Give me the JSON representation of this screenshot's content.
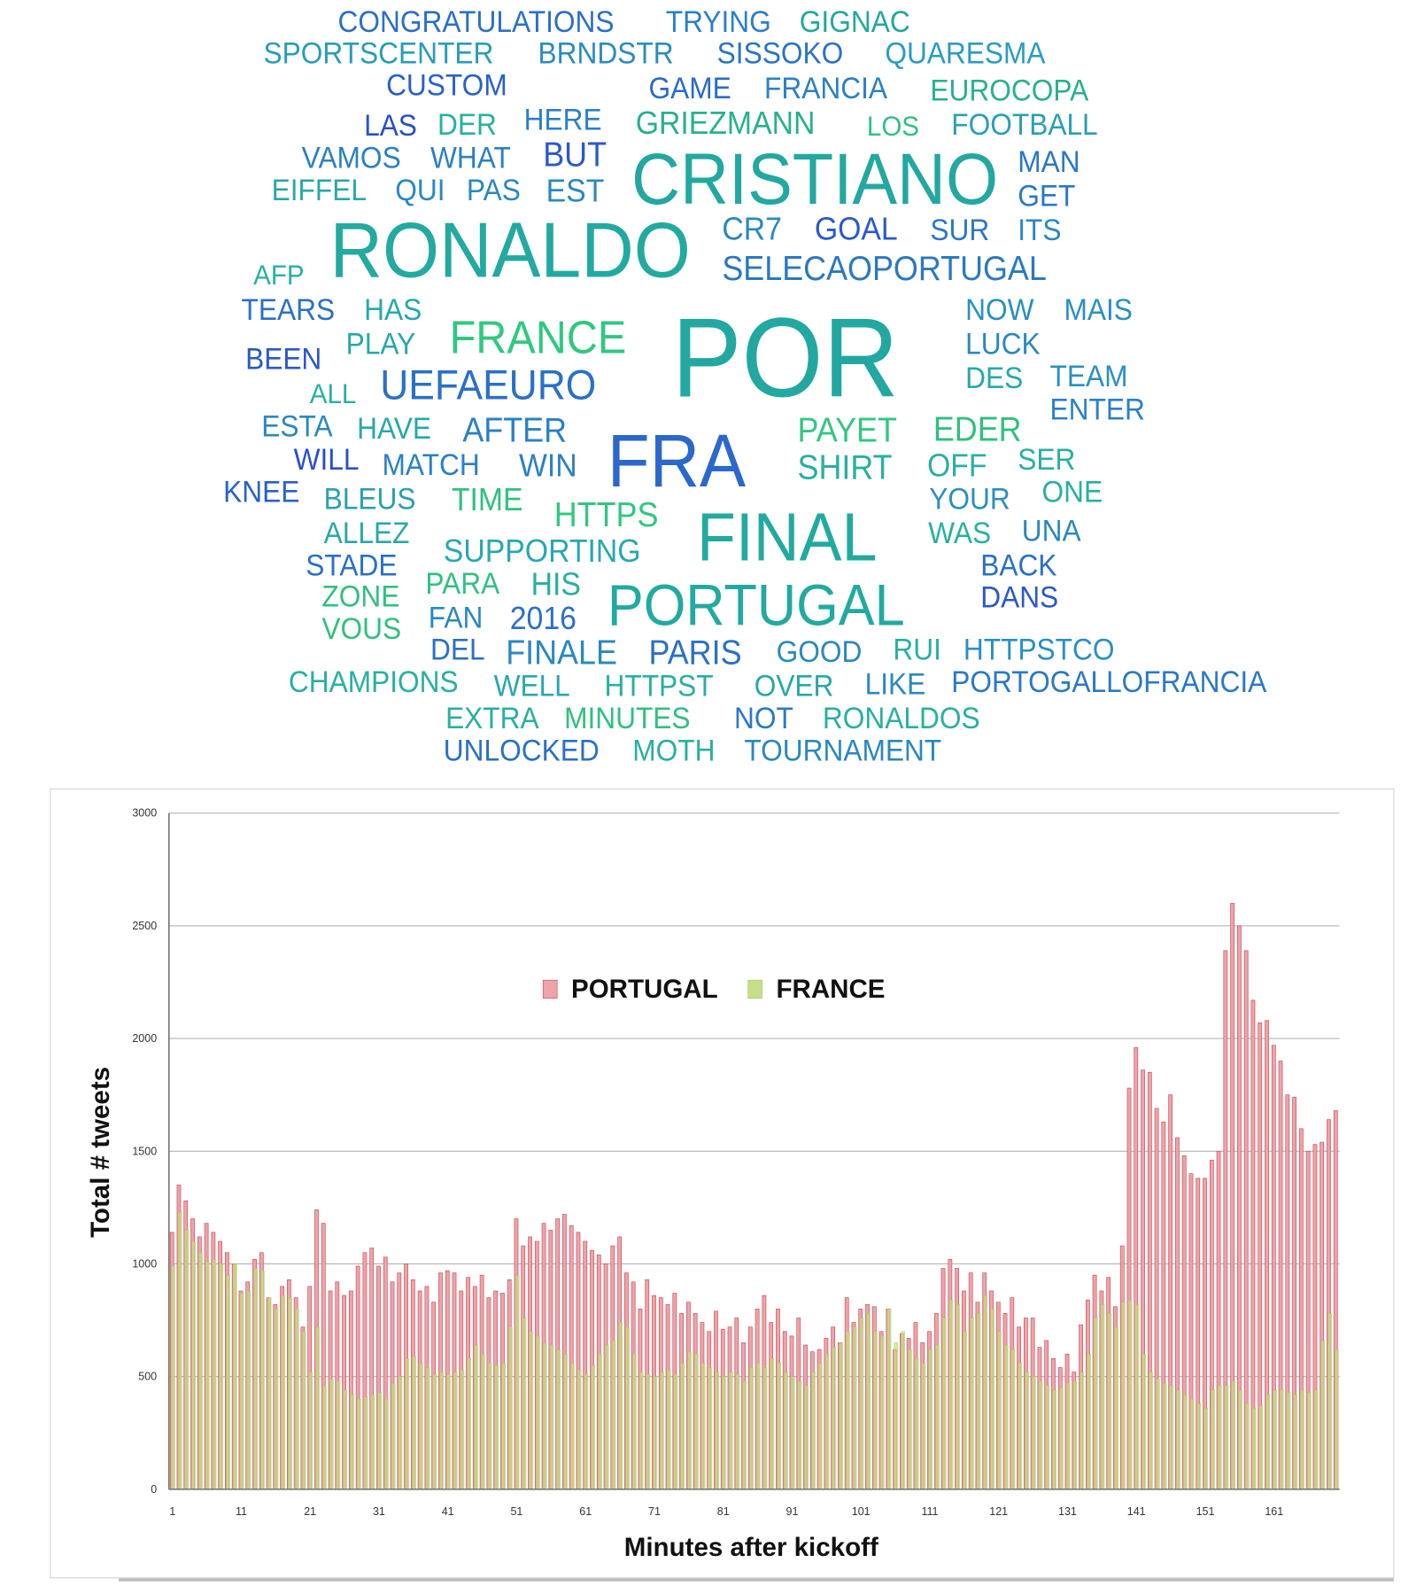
{
  "chart_data": [
    {
      "type": "wordcloud",
      "words": [
        "CONGRATULATIONS",
        "TRYING",
        "GIGNAC",
        "SPORTSCENTER",
        "BRNDSTR",
        "SISSOKO",
        "QUARESMA",
        "CUSTOM",
        "GAME",
        "FRANCIA",
        "EUROCOPA",
        "LAS",
        "DER",
        "HERE",
        "GRIEZMANN",
        "LOS",
        "FOOTBALL",
        "VAMOS",
        "WHAT",
        "BUT",
        "CRISTIANO",
        "MAN",
        "EIFFEL",
        "QUI",
        "PAS",
        "EST",
        "GET",
        "RONALDO",
        "CR7",
        "GOAL",
        "SUR",
        "ITS",
        "AFP",
        "SELECAOPORTUGAL",
        "TEARS",
        "HAS",
        "NOW",
        "MAIS",
        "FRANCE",
        "POR",
        "PLAY",
        "LUCK",
        "BEEN",
        "DES",
        "TEAM",
        "ALL",
        "UEFAEURO",
        "ENTER",
        "ESTA",
        "HAVE",
        "AFTER",
        "PAYET",
        "EDER",
        "FRA",
        "WILL",
        "MATCH",
        "WIN",
        "SHIRT",
        "OFF",
        "SER",
        "KNEE",
        "BLEUS",
        "TIME",
        "YOUR",
        "ONE",
        "HTTPS",
        "FINAL",
        "ALLEZ",
        "WAS",
        "UNA",
        "SUPPORTING",
        "STADE",
        "BACK",
        "PARA",
        "HIS",
        "PORTUGAL",
        "ZONE",
        "DANS",
        "FAN",
        "2016",
        "VOUS",
        "DEL",
        "FINALE",
        "PARIS",
        "GOOD",
        "RUI",
        "HTTPSTCO",
        "CHAMPIONS",
        "WELL",
        "HTTPST",
        "OVER",
        "LIKE",
        "PORTOGALLOFRANCIA",
        "EXTRA",
        "MINUTES",
        "NOT",
        "RONALDOS",
        "UNLOCKED",
        "MOTH",
        "TOURNAMENT"
      ],
      "colors": [
        "#2a6fc9",
        "#2a7fc9",
        "#22a89a",
        "#2a9cb8",
        "#2a8cc0",
        "#2a74c8",
        "#2a9cc0",
        "#2a5fcc",
        "#2a6acc",
        "#2a80c4",
        "#28b090",
        "#2a50c8",
        "#28b0a0",
        "#2a80c8",
        "#28b090",
        "#30c080",
        "#28a0b0",
        "#2a80c4",
        "#2a80c4",
        "#2a58cc",
        "#22a8a0",
        "#2a78c8",
        "#28a8a8",
        "#2a88c0",
        "#2a88c0",
        "#2a88c0",
        "#2a78c8",
        "#22aaa0",
        "#2a88c0",
        "#2a58cc",
        "#2a78c8",
        "#2a88c0",
        "#28b0a0",
        "#2a78c4",
        "#2a70c8",
        "#28a8a8",
        "#2a90c0",
        "#2a90c0",
        "#30c880",
        "#22a8a0",
        "#28a8a8",
        "#2a88c0",
        "#2a58cc",
        "#28a8a8",
        "#2a90c0",
        "#28b0a0",
        "#2a70c8",
        "#2a80c8",
        "#2a88c0",
        "#28a8a8",
        "#2a80c8",
        "#30c880",
        "#30c080",
        "#2a68cc",
        "#2a50c8",
        "#2a80c8",
        "#2a80c8",
        "#28b0a0",
        "#28b0a0",
        "#28b0a0",
        "#2a60cc",
        "#2aa0b0",
        "#30c080",
        "#2a90c0",
        "#28b0a0",
        "#30c880",
        "#22aaa0",
        "#28a8a8",
        "#28b0a0",
        "#2a88c0",
        "#28a8b0",
        "#2a70c8",
        "#2a70c8",
        "#30c080",
        "#28b0a0",
        "#22aaa0",
        "#30c080",
        "#2a58cc",
        "#2a88c0",
        "#2a70c8",
        "#30c080",
        "#2a70c8",
        "#2a88c0",
        "#2a70c8",
        "#2a88c0",
        "#28b0a0",
        "#2a90c0",
        "#28b0a0",
        "#28a8b0",
        "#28b0a0",
        "#28a8a8",
        "#2a88c0",
        "#2a78c8",
        "#28b0a0",
        "#30c080",
        "#2a78c8",
        "#28b0a0",
        "#2a70c8",
        "#28b0a0",
        "#2a88c0"
      ]
    },
    {
      "type": "bar",
      "xlabel": "Minutes  after kickoff",
      "ylabel": "Total  #  tweets",
      "categories": [
        1,
        null,
        null,
        null,
        null,
        null,
        null,
        null,
        null,
        null,
        11,
        null,
        null,
        null,
        null,
        null,
        null,
        null,
        null,
        null,
        21,
        null,
        null,
        null,
        null,
        null,
        null,
        null,
        null,
        null,
        31,
        null,
        null,
        null,
        null,
        null,
        null,
        null,
        null,
        null,
        41,
        null,
        null,
        null,
        null,
        null,
        null,
        null,
        null,
        null,
        51,
        null,
        null,
        null,
        null,
        null,
        null,
        null,
        null,
        null,
        61,
        null,
        null,
        null,
        null,
        null,
        null,
        null,
        null,
        null,
        71,
        null,
        null,
        null,
        null,
        null,
        null,
        null,
        null,
        null,
        81,
        null,
        null,
        null,
        null,
        null,
        null,
        null,
        null,
        null,
        91,
        null,
        null,
        null,
        null,
        null,
        null,
        null,
        null,
        null,
        101,
        null,
        null,
        null,
        null,
        null,
        null,
        null,
        null,
        null,
        111,
        null,
        null,
        null,
        null,
        null,
        null,
        null,
        null,
        null,
        121,
        null,
        null,
        null,
        null,
        null,
        null,
        null,
        null,
        null,
        131,
        null,
        null,
        null,
        null,
        null,
        null,
        null,
        null,
        null,
        141,
        null,
        null,
        null,
        null,
        null,
        null,
        null,
        null,
        null,
        151,
        null,
        null,
        null,
        null,
        null,
        null,
        null,
        null,
        null,
        161,
        null,
        null,
        null,
        null,
        null,
        null,
        null,
        null,
        null
      ],
      "series": [
        {
          "name": "PORTUGAL",
          "color": "#eba4aa",
          "edge": "#d0505a",
          "values": [
            1140,
            1350,
            1280,
            1200,
            1120,
            1180,
            1140,
            1100,
            1050,
            1000,
            880,
            920,
            1020,
            1050,
            850,
            820,
            900,
            930,
            850,
            720,
            900,
            1240,
            1180,
            880,
            920,
            860,
            880,
            990,
            1050,
            1070,
            990,
            1030,
            920,
            960,
            1000,
            930,
            880,
            900,
            830,
            960,
            970,
            960,
            880,
            940,
            900,
            950,
            850,
            880,
            870,
            930,
            1200,
            1080,
            1120,
            1100,
            1180,
            1150,
            1200,
            1220,
            1170,
            1140,
            1100,
            1060,
            1040,
            1000,
            1080,
            1120,
            960,
            920,
            800,
            930,
            860,
            850,
            820,
            870,
            780,
            830,
            780,
            740,
            700,
            790,
            710,
            720,
            760,
            650,
            720,
            800,
            860,
            740,
            800,
            700,
            680,
            760,
            640,
            610,
            620,
            670,
            720,
            650,
            850,
            740,
            800,
            820,
            810,
            700,
            800,
            620,
            690,
            670,
            740,
            650,
            700,
            780,
            980,
            1020,
            980,
            880,
            960,
            830,
            960,
            880,
            830,
            780,
            850,
            720,
            760,
            760,
            630,
            660,
            580,
            540,
            600,
            520,
            730,
            840,
            950,
            880,
            940,
            810,
            1080,
            1780,
            1960,
            1860,
            1850,
            1690,
            1630,
            1750,
            1560,
            1480,
            1400,
            1380,
            1380,
            1460,
            1500,
            2390,
            2600,
            2500,
            2390,
            2170,
            2070,
            2080,
            1970,
            1900,
            1750,
            1740,
            1600,
            1500,
            1530,
            1540,
            1640,
            1680
          ]
        },
        {
          "name": "FRANCE",
          "color": "#c6de8a",
          "edge": "#a8c860",
          "values": [
            990,
            1230,
            1150,
            1100,
            1050,
            1010,
            1020,
            1000,
            950,
            1000,
            870,
            880,
            980,
            970,
            850,
            800,
            860,
            850,
            800,
            700,
            520,
            720,
            460,
            490,
            480,
            440,
            420,
            400,
            410,
            420,
            430,
            400,
            470,
            500,
            580,
            590,
            560,
            540,
            510,
            520,
            510,
            520,
            530,
            580,
            640,
            600,
            560,
            550,
            560,
            720,
            950,
            760,
            700,
            680,
            650,
            640,
            620,
            600,
            560,
            530,
            510,
            550,
            600,
            640,
            660,
            740,
            720,
            600,
            520,
            510,
            500,
            520,
            530,
            510,
            560,
            610,
            600,
            560,
            540,
            520,
            500,
            520,
            510,
            480,
            540,
            560,
            540,
            580,
            560,
            520,
            500,
            480,
            460,
            520,
            560,
            600,
            630,
            650,
            700,
            720,
            760,
            780,
            700,
            680,
            800,
            650,
            700,
            620,
            580,
            560,
            620,
            640,
            760,
            840,
            820,
            700,
            760,
            780,
            860,
            800,
            700,
            640,
            620,
            560,
            520,
            500,
            480,
            460,
            440,
            450,
            470,
            480,
            520,
            600,
            760,
            820,
            780,
            720,
            830,
            840,
            820,
            600,
            520,
            490,
            470,
            460,
            440,
            420,
            400,
            380,
            360,
            440,
            460,
            460,
            480,
            440,
            380,
            360,
            370,
            420,
            440,
            440,
            430,
            420,
            440,
            430,
            440,
            660,
            780,
            620
          ]
        }
      ],
      "ylim": [
        0,
        3000
      ],
      "yticks": [
        0,
        500,
        1000,
        1500,
        2000,
        2500,
        3000
      ],
      "grid": true,
      "legend": "center"
    }
  ]
}
